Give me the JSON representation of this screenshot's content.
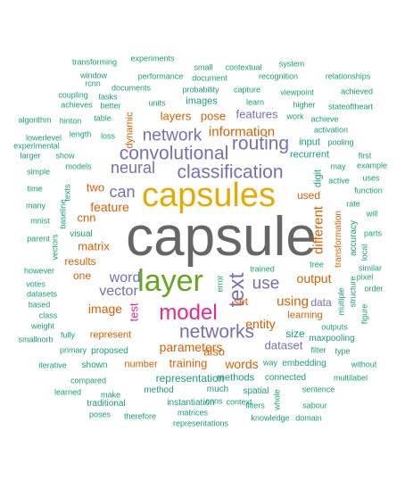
{
  "colors": {
    "teal": "#1b9e77",
    "orange": "#d95f02",
    "purple": "#7570b3",
    "magenta": "#e7298a",
    "green": "#66a61e",
    "gold": "#e6ab02",
    "gray": "#666666"
  },
  "words": [
    {
      "t": "capsule",
      "c": "gray"
    },
    {
      "t": "capsules",
      "c": "gold"
    },
    {
      "t": "layer",
      "c": "green"
    },
    {
      "t": "model",
      "c": "magenta"
    },
    {
      "t": "networks",
      "c": "purple"
    },
    {
      "t": "convolutional",
      "c": "purple"
    },
    {
      "t": "classification",
      "c": "purple"
    },
    {
      "t": "routing",
      "c": "purple"
    },
    {
      "t": "network",
      "c": "purple"
    },
    {
      "t": "neural",
      "c": "purple"
    },
    {
      "t": "text",
      "c": "purple"
    },
    {
      "t": "use",
      "c": "purple"
    },
    {
      "t": "can",
      "c": "purple"
    },
    {
      "t": "word",
      "c": "purple"
    },
    {
      "t": "vector",
      "c": "purple"
    },
    {
      "t": "information",
      "c": "orange"
    },
    {
      "t": "parameters",
      "c": "orange"
    },
    {
      "t": "features",
      "c": "purple"
    },
    {
      "t": "layers",
      "c": "orange"
    },
    {
      "t": "pose",
      "c": "orange"
    },
    {
      "t": "feature",
      "c": "orange"
    },
    {
      "t": "different",
      "c": "orange"
    },
    {
      "t": "output",
      "c": "orange"
    },
    {
      "t": "using",
      "c": "orange"
    },
    {
      "t": "image",
      "c": "orange"
    },
    {
      "t": "entity",
      "c": "orange"
    },
    {
      "t": "words",
      "c": "orange"
    },
    {
      "t": "also",
      "c": "orange"
    },
    {
      "t": "training",
      "c": "orange"
    },
    {
      "t": "dataset",
      "c": "purple"
    },
    {
      "t": "matrix",
      "c": "orange"
    },
    {
      "t": "test",
      "c": "magenta"
    },
    {
      "t": "data",
      "c": "purple"
    },
    {
      "t": "set",
      "c": "orange"
    },
    {
      "t": "cnn",
      "c": "orange"
    },
    {
      "t": "two",
      "c": "orange"
    },
    {
      "t": "results",
      "c": "orange"
    },
    {
      "t": "one",
      "c": "orange"
    },
    {
      "t": "number",
      "c": "orange"
    },
    {
      "t": "representation",
      "c": "teal"
    },
    {
      "t": "used",
      "c": "orange"
    },
    {
      "t": "recurrent",
      "c": "teal"
    },
    {
      "t": "input",
      "c": "teal"
    },
    {
      "t": "size",
      "c": "teal"
    },
    {
      "t": "represent",
      "c": "orange"
    },
    {
      "t": "learning",
      "c": "orange"
    },
    {
      "t": "images",
      "c": "teal"
    },
    {
      "t": "methods",
      "c": "teal"
    },
    {
      "t": "dynamic",
      "c": "orange"
    },
    {
      "t": "digit",
      "c": "teal"
    },
    {
      "t": "transformation",
      "c": "orange"
    },
    {
      "t": "accuracy",
      "c": "teal"
    },
    {
      "t": "visual",
      "c": "teal"
    },
    {
      "t": "embedding",
      "c": "teal"
    },
    {
      "t": "maxpooling",
      "c": "teal"
    },
    {
      "t": "proposed",
      "c": "teal"
    },
    {
      "t": "connected",
      "c": "teal"
    },
    {
      "t": "spatial",
      "c": "teal"
    },
    {
      "t": "much",
      "c": "teal"
    },
    {
      "t": "method",
      "c": "teal"
    },
    {
      "t": "instantiation",
      "c": "teal"
    },
    {
      "t": "shown",
      "c": "teal"
    },
    {
      "t": "traditional",
      "c": "teal"
    },
    {
      "t": "experiments",
      "c": "teal"
    },
    {
      "t": "transforming",
      "c": "teal"
    },
    {
      "t": "system",
      "c": "teal"
    },
    {
      "t": "small",
      "c": "teal"
    },
    {
      "t": "contextual",
      "c": "teal"
    },
    {
      "t": "window",
      "c": "teal"
    },
    {
      "t": "performance",
      "c": "teal"
    },
    {
      "t": "recognition",
      "c": "teal"
    },
    {
      "t": "relationships",
      "c": "teal"
    },
    {
      "t": "rcnn",
      "c": "teal"
    },
    {
      "t": "document",
      "c": "teal"
    },
    {
      "t": "documents",
      "c": "teal"
    },
    {
      "t": "probability",
      "c": "teal"
    },
    {
      "t": "capture",
      "c": "teal"
    },
    {
      "t": "viewpoint",
      "c": "teal"
    },
    {
      "t": "achieved",
      "c": "teal"
    },
    {
      "t": "coupling",
      "c": "teal"
    },
    {
      "t": "tasks",
      "c": "teal"
    },
    {
      "t": "achieves",
      "c": "teal"
    },
    {
      "t": "better",
      "c": "teal"
    },
    {
      "t": "units",
      "c": "teal"
    },
    {
      "t": "learn",
      "c": "teal"
    },
    {
      "t": "higher",
      "c": "teal"
    },
    {
      "t": "stateoftheart",
      "c": "teal"
    },
    {
      "t": "algorithm",
      "c": "teal"
    },
    {
      "t": "hinton",
      "c": "teal"
    },
    {
      "t": "table",
      "c": "teal"
    },
    {
      "t": "work",
      "c": "teal"
    },
    {
      "t": "achieve",
      "c": "teal"
    },
    {
      "t": "lowerlevel",
      "c": "teal"
    },
    {
      "t": "length",
      "c": "teal"
    },
    {
      "t": "loss",
      "c": "teal"
    },
    {
      "t": "activation",
      "c": "teal"
    },
    {
      "t": "experimental",
      "c": "teal"
    },
    {
      "t": "pooling",
      "c": "teal"
    },
    {
      "t": "larger",
      "c": "teal"
    },
    {
      "t": "show",
      "c": "teal"
    },
    {
      "t": "first",
      "c": "teal"
    },
    {
      "t": "models",
      "c": "teal"
    },
    {
      "t": "may",
      "c": "teal"
    },
    {
      "t": "example",
      "c": "teal"
    },
    {
      "t": "simple",
      "c": "teal"
    },
    {
      "t": "uses",
      "c": "teal"
    },
    {
      "t": "time",
      "c": "teal"
    },
    {
      "t": "active",
      "c": "teal"
    },
    {
      "t": "function",
      "c": "teal"
    },
    {
      "t": "texts",
      "c": "teal"
    },
    {
      "t": "many",
      "c": "teal"
    },
    {
      "t": "baseline",
      "c": "teal"
    },
    {
      "t": "rate",
      "c": "teal"
    },
    {
      "t": "will",
      "c": "teal"
    },
    {
      "t": "mnist",
      "c": "teal"
    },
    {
      "t": "parent",
      "c": "teal"
    },
    {
      "t": "vectors",
      "c": "teal"
    },
    {
      "t": "parts",
      "c": "teal"
    },
    {
      "t": "local",
      "c": "teal"
    },
    {
      "t": "however",
      "c": "teal"
    },
    {
      "t": "trained",
      "c": "teal"
    },
    {
      "t": "tree",
      "c": "teal"
    },
    {
      "t": "similar",
      "c": "teal"
    },
    {
      "t": "pixel",
      "c": "teal"
    },
    {
      "t": "votes",
      "c": "teal"
    },
    {
      "t": "error",
      "c": "teal"
    },
    {
      "t": "order",
      "c": "teal"
    },
    {
      "t": "datasets",
      "c": "teal"
    },
    {
      "t": "structure",
      "c": "teal"
    },
    {
      "t": "based",
      "c": "teal"
    },
    {
      "t": "multiple",
      "c": "teal"
    },
    {
      "t": "figure",
      "c": "teal"
    },
    {
      "t": "class",
      "c": "teal"
    },
    {
      "t": "weight",
      "c": "teal"
    },
    {
      "t": "outputs",
      "c": "teal"
    },
    {
      "t": "smallnorb",
      "c": "teal"
    },
    {
      "t": "primary",
      "c": "teal"
    },
    {
      "t": "filter",
      "c": "teal"
    },
    {
      "t": "type",
      "c": "teal"
    },
    {
      "t": "fully",
      "c": "teal"
    },
    {
      "t": "way",
      "c": "teal"
    },
    {
      "t": "iterative",
      "c": "teal"
    },
    {
      "t": "without",
      "c": "teal"
    },
    {
      "t": "multilabel",
      "c": "teal"
    },
    {
      "t": "learned",
      "c": "teal"
    },
    {
      "t": "compared",
      "c": "teal"
    },
    {
      "t": "make",
      "c": "teal"
    },
    {
      "t": "sentence",
      "c": "teal"
    },
    {
      "t": "cnns",
      "c": "teal"
    },
    {
      "t": "context",
      "c": "teal"
    },
    {
      "t": "whole",
      "c": "teal"
    },
    {
      "t": "sabour",
      "c": "teal"
    },
    {
      "t": "poses",
      "c": "teal"
    },
    {
      "t": "therefore",
      "c": "teal"
    },
    {
      "t": "matrices",
      "c": "teal"
    },
    {
      "t": "filters",
      "c": "teal"
    },
    {
      "t": "knowledge",
      "c": "teal"
    },
    {
      "t": "domain",
      "c": "teal"
    },
    {
      "t": "representations",
      "c": "teal"
    }
  ]
}
